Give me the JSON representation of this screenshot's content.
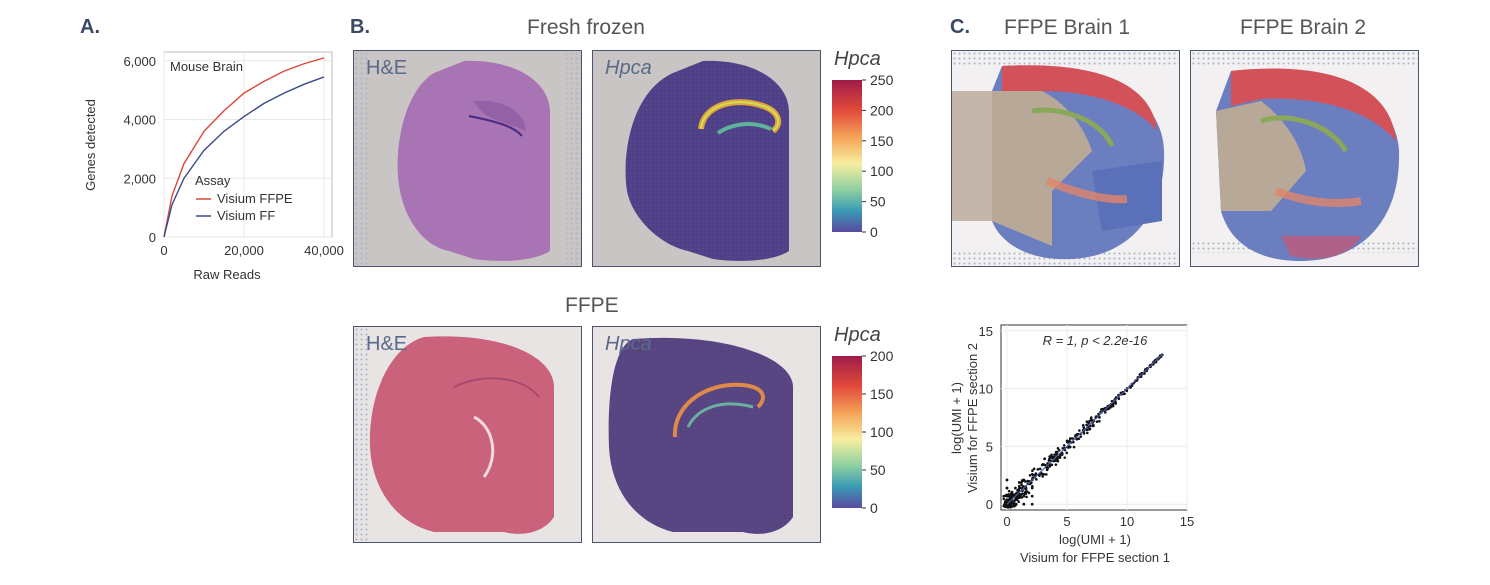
{
  "panels": {
    "a": {
      "letter": "A."
    },
    "b": {
      "letter": "B.",
      "fresh_title": "Fresh frozen",
      "ffpe_title": "FFPE",
      "he_label": "H&E",
      "gene_label": "Hpca"
    },
    "c": {
      "letter": "C.",
      "brain1_title": "FFPE Brain 1",
      "brain2_title": "FFPE Brain 2"
    }
  },
  "colorbars": {
    "fresh": {
      "title": "Hpca",
      "ticks": [
        "250",
        "200",
        "150",
        "100",
        "50",
        "0"
      ]
    },
    "ffpe": {
      "title": "Hpca",
      "ticks": [
        "200",
        "150",
        "100",
        "50",
        "0"
      ]
    }
  },
  "chart_data": [
    {
      "type": "line",
      "title": "Mouse Brain",
      "xlabel": "Raw Reads",
      "ylabel": "Genes detected",
      "xlim": [
        0,
        42000
      ],
      "ylim": [
        0,
        6300
      ],
      "x_ticks": [
        "0",
        "20,000",
        "40,000"
      ],
      "y_ticks": [
        "0",
        "2,000",
        "4,000",
        "6,000"
      ],
      "legend_title": "Assay",
      "grid": true,
      "series": [
        {
          "name": "Visium FFPE",
          "color": "#d9473a",
          "x": [
            0,
            2000,
            5000,
            10000,
            15000,
            20000,
            25000,
            30000,
            35000,
            40000
          ],
          "y": [
            0,
            1400,
            2500,
            3600,
            4300,
            4900,
            5300,
            5650,
            5900,
            6100
          ]
        },
        {
          "name": "Visium FF",
          "color": "#3a4a8a",
          "x": [
            0,
            2000,
            5000,
            10000,
            15000,
            20000,
            25000,
            30000,
            35000,
            40000
          ],
          "y": [
            0,
            1100,
            2000,
            2950,
            3600,
            4100,
            4550,
            4900,
            5200,
            5450
          ]
        }
      ]
    },
    {
      "type": "scatter",
      "annotation": "R = 1, p < 2.2e-16",
      "xlabel": "log(UMI + 1)",
      "xlabel2": "Visium for FFPE section 1",
      "ylabel": "log(UMI + 1)",
      "ylabel2": "Visium for FFPE section 2",
      "xlim": [
        -0.5,
        15
      ],
      "ylim": [
        -0.5,
        15.5
      ],
      "x_ticks": [
        "0",
        "5",
        "10",
        "15"
      ],
      "y_ticks": [
        "0",
        "5",
        "10",
        "15"
      ],
      "grid": true,
      "fit_line": {
        "from": [
          0,
          0
        ],
        "to": [
          13,
          13
        ],
        "color": "#4a5aa8"
      }
    }
  ]
}
